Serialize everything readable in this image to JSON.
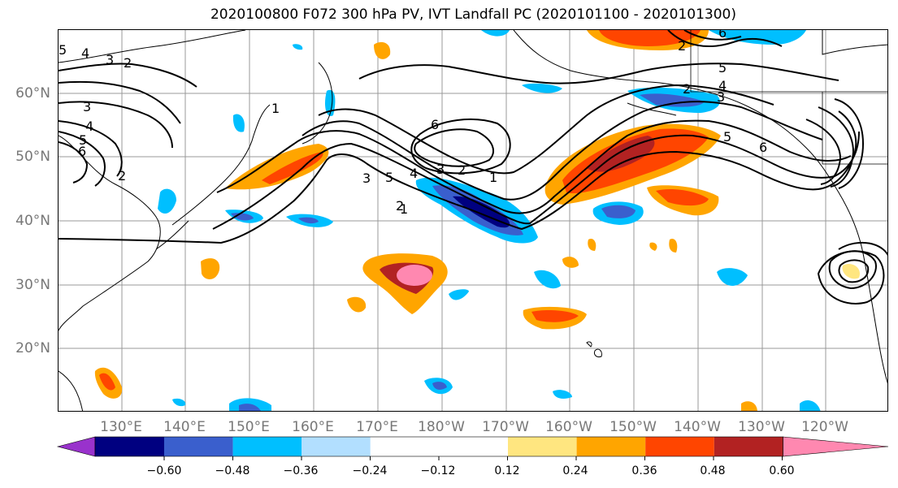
{
  "title": "2020100800 F072 300 hPa PV, IVT Landfall PC (2020101100 - 2020101300)",
  "lat_labels": [
    "60°N",
    "50°N",
    "40°N",
    "30°N",
    "20°N"
  ],
  "lon_labels": [
    "130°E",
    "140°E",
    "150°E",
    "160°E",
    "170°E",
    "180°W",
    "170°W",
    "160°W",
    "150°W",
    "140°W",
    "130°W",
    "120°W"
  ],
  "colorbar": {
    "colors": [
      "#9932cc",
      "#000080",
      "#3a5fcd",
      "#00bfff",
      "#b2dfff",
      "#ffffff",
      "#ffffff",
      "#ffe680",
      "#ffa500",
      "#ff4500",
      "#b22222",
      "#ff88b0"
    ],
    "tick_labels": [
      "−0.60",
      "−0.48",
      "−0.36",
      "−0.24",
      "−0.12",
      "0.12",
      "0.24",
      "0.36",
      "0.48",
      "0.60"
    ]
  },
  "contour_labels": [
    "5",
    "4",
    "3",
    "2",
    "1",
    "2",
    "3",
    "4",
    "5",
    "6",
    "3",
    "2",
    "1",
    "6",
    "5",
    "4",
    "3",
    "2",
    "1",
    "2",
    "6",
    "5",
    "4",
    "3",
    "2",
    "5",
    "6"
  ]
}
